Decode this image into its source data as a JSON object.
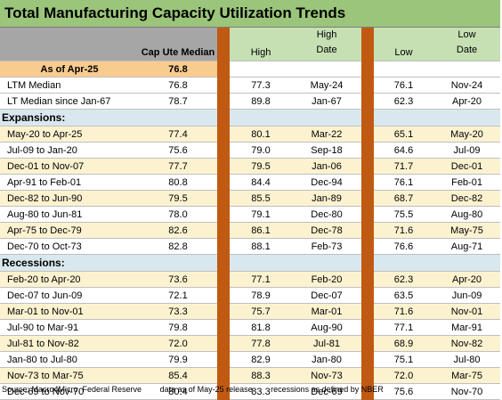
{
  "title": "Total Manufacturing Capacity Utilization Trends",
  "headers": {
    "cap_ute_median": "Cap Ute Median",
    "high": "High",
    "high_date": "High\nDate",
    "low": "Low",
    "low_date": "Low\nDate"
  },
  "as_of": {
    "label": "As of Apr-25",
    "value": "76.8"
  },
  "summary_rows": [
    {
      "label": "LTM Median",
      "median": "76.8",
      "high": "77.3",
      "high_date": "May-24",
      "low": "76.1",
      "low_date": "Nov-24"
    },
    {
      "label": "LT Median since Jan-67",
      "median": "78.7",
      "high": "89.8",
      "high_date": "Jan-67",
      "low": "62.3",
      "low_date": "Apr-20"
    }
  ],
  "expansions_label": "Expansions:",
  "expansions": [
    {
      "label": "May-20 to Apr-25",
      "median": "77.4",
      "high": "80.1",
      "high_date": "Mar-22",
      "low": "65.1",
      "low_date": "May-20"
    },
    {
      "label": "Jul-09 to Jan-20",
      "median": "75.6",
      "high": "79.0",
      "high_date": "Sep-18",
      "low": "64.6",
      "low_date": "Jul-09"
    },
    {
      "label": "Dec-01 to Nov-07",
      "median": "77.7",
      "high": "79.5",
      "high_date": "Jan-06",
      "low": "71.7",
      "low_date": "Dec-01"
    },
    {
      "label": "Apr-91 to Feb-01",
      "median": "80.8",
      "high": "84.4",
      "high_date": "Dec-94",
      "low": "76.1",
      "low_date": "Feb-01"
    },
    {
      "label": "Dec-82 to Jun-90",
      "median": "79.5",
      "high": "85.5",
      "high_date": "Jan-89",
      "low": "68.7",
      "low_date": "Dec-82"
    },
    {
      "label": "Aug-80 to Jun-81",
      "median": "78.0",
      "high": "79.1",
      "high_date": "Dec-80",
      "low": "75.5",
      "low_date": "Aug-80"
    },
    {
      "label": "Apr-75 to Dec-79",
      "median": "82.6",
      "high": "86.1",
      "high_date": "Dec-78",
      "low": "71.6",
      "low_date": "May-75"
    },
    {
      "label": "Dec-70 to Oct-73",
      "median": "82.8",
      "high": "88.1",
      "high_date": "Feb-73",
      "low": "76.6",
      "low_date": "Aug-71"
    }
  ],
  "recessions_label": "Recessions:",
  "recessions": [
    {
      "label": "Feb-20 to Apr-20",
      "median": "73.6",
      "high": "77.1",
      "high_date": "Feb-20",
      "low": "62.3",
      "low_date": "Apr-20"
    },
    {
      "label": "Dec-07 to Jun-09",
      "median": "72.1",
      "high": "78.9",
      "high_date": "Dec-07",
      "low": "63.5",
      "low_date": "Jun-09"
    },
    {
      "label": "Mar-01 to Nov-01",
      "median": "73.3",
      "high": "75.7",
      "high_date": "Mar-01",
      "low": "71.6",
      "low_date": "Nov-01"
    },
    {
      "label": "Jul-90 to Mar-91",
      "median": "79.8",
      "high": "81.8",
      "high_date": "Aug-90",
      "low": "77.1",
      "low_date": "Mar-91"
    },
    {
      "label": "Jul-81 to Nov-82",
      "median": "72.0",
      "high": "77.8",
      "high_date": "Jul-81",
      "low": "68.9",
      "low_date": "Nov-82"
    },
    {
      "label": "Jan-80 to Jul-80",
      "median": "79.9",
      "high": "82.9",
      "high_date": "Jan-80",
      "low": "75.1",
      "low_date": "Jul-80"
    },
    {
      "label": "Nov-73 to Mar-75",
      "median": "85.4",
      "high": "88.3",
      "high_date": "Nov-73",
      "low": "72.0",
      "low_date": "Mar-75"
    },
    {
      "label": "Dec-69 to Nov-70",
      "median": "80.4",
      "high": "83.3",
      "high_date": "Dec-69",
      "low": "75.6",
      "low_date": "Nov-70"
    }
  ],
  "footer": {
    "source": "Source: Macro4Micro, Federal Reserve",
    "data_as_of": "data as of May-25 release",
    "recession_note": "recessions as defined by NBER"
  },
  "colors": {
    "title_bg": "#9bc57a",
    "header_gray": "#a6a6a6",
    "header_green": "#c6e0b4",
    "asof_bg": "#f8cb8e",
    "section_bg": "#d9e8ee",
    "stripe_yellow": "#fdf2d0",
    "separator": "#c05a12"
  }
}
